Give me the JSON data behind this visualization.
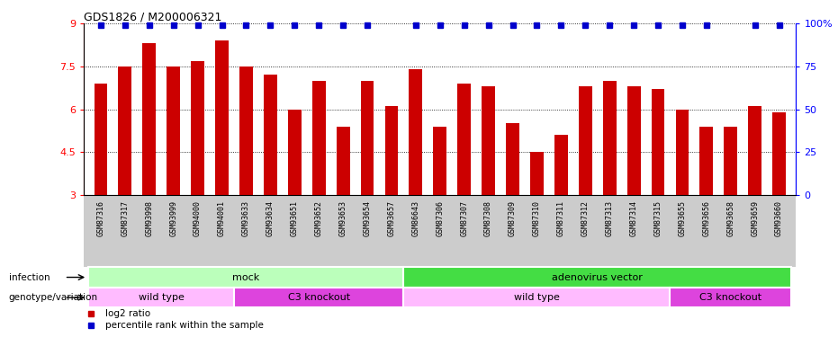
{
  "title": "GDS1826 / M200006321",
  "samples": [
    "GSM87316",
    "GSM87317",
    "GSM93998",
    "GSM93999",
    "GSM94000",
    "GSM94001",
    "GSM93633",
    "GSM93634",
    "GSM93651",
    "GSM93652",
    "GSM93653",
    "GSM93654",
    "GSM93657",
    "GSM86643",
    "GSM87306",
    "GSM87307",
    "GSM87308",
    "GSM87309",
    "GSM87310",
    "GSM87311",
    "GSM87312",
    "GSM87313",
    "GSM87314",
    "GSM87315",
    "GSM93655",
    "GSM93656",
    "GSM93658",
    "GSM93659",
    "GSM93660"
  ],
  "log2_values": [
    6.9,
    7.5,
    8.3,
    7.5,
    7.7,
    8.4,
    7.5,
    7.2,
    6.0,
    7.0,
    5.4,
    7.0,
    6.1,
    7.4,
    5.4,
    6.9,
    6.8,
    5.5,
    4.5,
    5.1,
    6.8,
    7.0,
    6.8,
    6.7,
    6.0,
    5.4,
    5.4,
    6.1,
    5.9
  ],
  "percentile_high": [
    true,
    true,
    true,
    true,
    true,
    true,
    true,
    true,
    true,
    true,
    true,
    true,
    false,
    true,
    true,
    true,
    true,
    true,
    true,
    true,
    true,
    true,
    true,
    true,
    true,
    true,
    false,
    true,
    true
  ],
  "ylim": [
    3,
    9
  ],
  "yticks": [
    3,
    4.5,
    6,
    7.5,
    9
  ],
  "ytick_labels": [
    "3",
    "4.5",
    "6",
    "7.5",
    "9"
  ],
  "right_yticks": [
    0,
    25,
    50,
    75,
    100
  ],
  "right_ytick_labels": [
    "0",
    "25",
    "50",
    "75",
    "100%"
  ],
  "bar_color": "#cc0000",
  "percentile_color": "#0000cc",
  "bar_width": 0.55,
  "infection_row": [
    {
      "label": "mock",
      "start": 0,
      "end": 13,
      "color": "#bbffbb"
    },
    {
      "label": "adenovirus vector",
      "start": 13,
      "end": 29,
      "color": "#44dd44"
    }
  ],
  "genotype_row": [
    {
      "label": "wild type",
      "start": 0,
      "end": 6,
      "color": "#ffbbff"
    },
    {
      "label": "C3 knockout",
      "start": 6,
      "end": 13,
      "color": "#dd44dd"
    },
    {
      "label": "wild type",
      "start": 13,
      "end": 24,
      "color": "#ffbbff"
    },
    {
      "label": "C3 knockout",
      "start": 24,
      "end": 29,
      "color": "#dd44dd"
    }
  ],
  "infection_label": "infection",
  "genotype_label": "genotype/variation",
  "legend_log2_label": "log2 ratio",
  "legend_pct_label": "percentile rank within the sample",
  "bg_color": "#ffffff",
  "label_area_color": "#cccccc"
}
